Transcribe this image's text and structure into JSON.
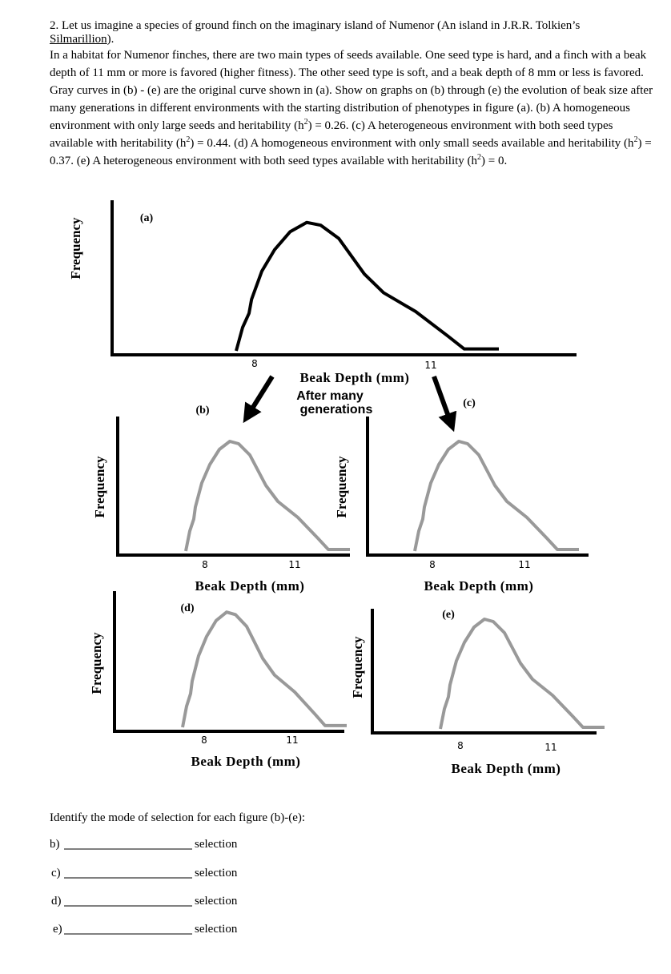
{
  "question": {
    "intro": "2. Let us imagine a species of ground finch on the imaginary island of Numenor (An island in J.R.R. Tolkien’s",
    "book": "Silmarillion",
    "intro_end": ").",
    "body": [
      "In a habitat for Numenor finches, there are two main types of seeds available.  One seed type is hard, and a finch with a beak depth of 11 mm or more is favored (higher fitness).  The other seed type is soft, and a beak depth of 8 mm or less is favored.  Gray curves in (b) - (e) are the original curve shown in (a).  Show on graphs on (b) through (e) the evolution of beak size after many generations in different environments with the starting distribution of phenotypes in figure (a). (b) A homogeneous environment with only large seeds and heritability (h",
      "2",
      ") = 0.26. (c) A heterogeneous environment with both seed types available with heritability (h",
      "2",
      ") = 0.44.  (d) A homogeneous environment with only small seeds available and heritability (h",
      "2",
      ") = 0.37. (e) A heterogeneous environment with both seed types available with heritability (h",
      "2",
      ") = 0."
    ]
  },
  "figures": [
    {
      "label": "(a)",
      "y_axis": "Frequency",
      "x_ticks": [
        "8",
        "11"
      ],
      "x_axis": "Beak Depth (mm)"
    },
    {
      "label": "(b)",
      "y_axis": "Frequency",
      "x_ticks": [
        "8",
        "11"
      ],
      "x_axis": "Beak Depth (mm)"
    },
    {
      "label": "(c)",
      "y_axis": "Frequency",
      "x_ticks": [
        "8",
        "11"
      ],
      "x_axis": "Beak Depth (mm)"
    },
    {
      "label": "(d)",
      "y_axis": "Frequency",
      "x_ticks": [
        "8",
        "11"
      ],
      "x_axis": "Beak Depth (mm)"
    },
    {
      "label": "(e)",
      "y_axis": "Frequency",
      "x_ticks": [
        "8",
        "11"
      ],
      "x_axis": "Beak Depth (mm)"
    }
  ],
  "arrow_caption": [
    "After many",
    "generations"
  ],
  "prompt": "Identify the mode of selection for each figure (b)-(e):",
  "answers": [
    {
      "label": "b)",
      "suffix": "selection"
    },
    {
      "label": "c)",
      "suffix": "selection"
    },
    {
      "label": "d)",
      "suffix": "selection"
    },
    {
      "label": "e)",
      "suffix": "selection"
    }
  ]
}
